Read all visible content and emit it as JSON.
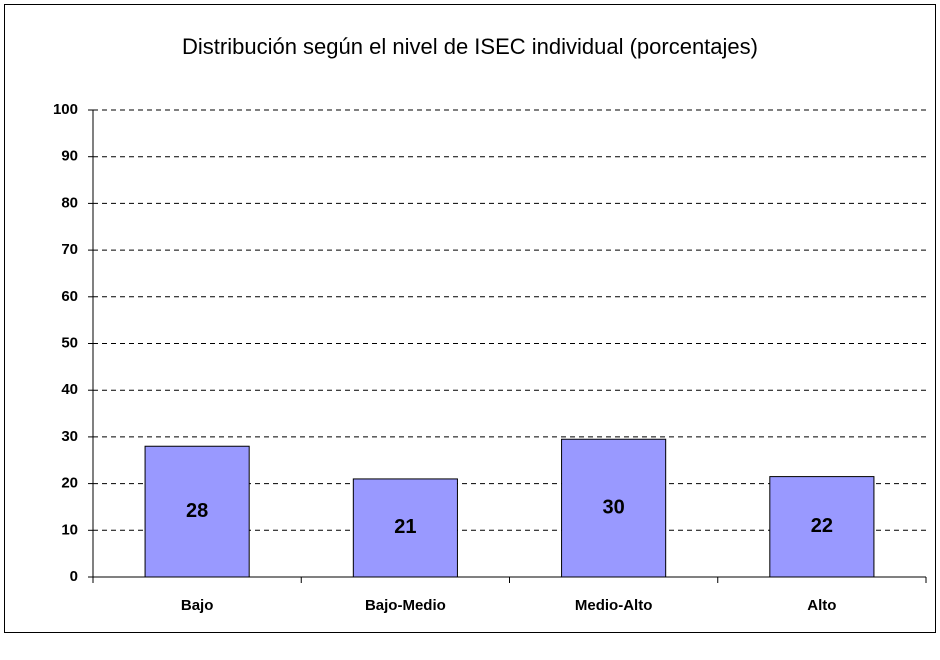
{
  "chart_data": {
    "type": "bar",
    "title": "Distribución según el nivel de ISEC individual (porcentajes)",
    "categories": [
      "Bajo",
      "Bajo-Medio",
      "Medio-Alto",
      "Alto"
    ],
    "values": [
      28,
      21,
      29.5,
      21.5
    ],
    "value_labels": [
      "28",
      "21",
      "30",
      "22"
    ],
    "color": "#9999ff",
    "ylim": [
      0,
      100
    ],
    "yticks": [
      0,
      10,
      20,
      30,
      40,
      50,
      60,
      70,
      80,
      90,
      100
    ],
    "grid": true
  }
}
